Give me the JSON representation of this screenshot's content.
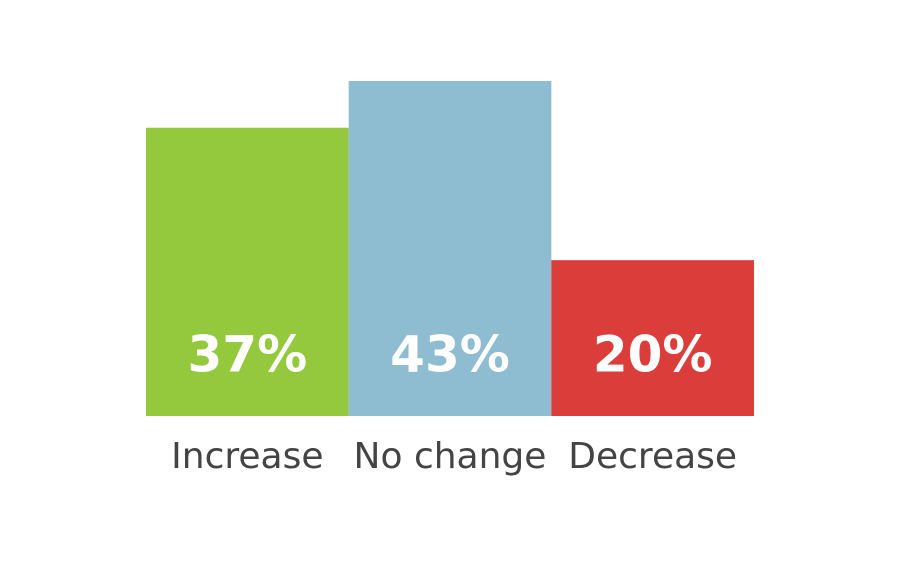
{
  "chart_data": {
    "type": "bar",
    "categories": [
      "Increase",
      "No change",
      "Decrease"
    ],
    "values": [
      37,
      43,
      20
    ],
    "value_labels": [
      "37%",
      "43%",
      "20%"
    ],
    "colors": [
      "#95c93d",
      "#8ebdd1",
      "#db3d3b"
    ]
  }
}
